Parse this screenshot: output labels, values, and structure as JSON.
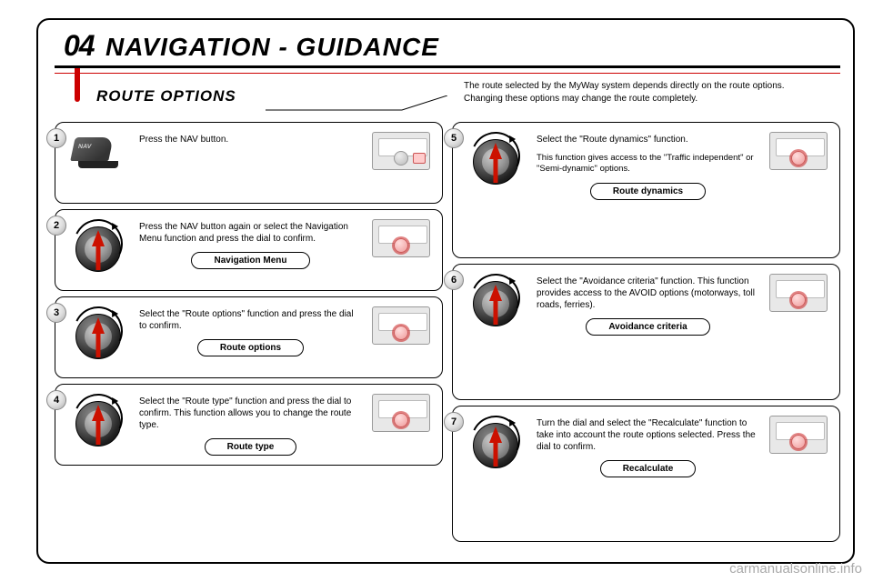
{
  "colors": {
    "accent": "#c00",
    "text": "#000",
    "bg": "#ffffff",
    "watermark": "#aaaaaa"
  },
  "header": {
    "number": "04",
    "title": "NAVIGATION - GUIDANCE"
  },
  "section_title": "ROUTE OPTIONS",
  "intro": {
    "line1": "The route selected by the MyWay system depends directly on the route options.",
    "line2": "Changing these options may change the route completely."
  },
  "steps": [
    {
      "n": "1",
      "text": "Press the NAV button.",
      "pill": null,
      "icon": "nav",
      "thumb": "btn",
      "sub": null,
      "tall": false
    },
    {
      "n": "2",
      "text": "Press the NAV button again or select the Navigation Menu function and press the dial to confirm.",
      "pill": "Navigation Menu",
      "icon": "dial",
      "thumb": "dial",
      "sub": null,
      "tall": false
    },
    {
      "n": "3",
      "text": "Select the \"Route options\" function and press the dial to confirm.",
      "pill": "Route options",
      "icon": "dial",
      "thumb": "dial",
      "sub": null,
      "tall": false
    },
    {
      "n": "4",
      "text": "Select the \"Route type\" function and press the dial to confirm. This function allows you to change the route type.",
      "pill": "Route type",
      "icon": "dial",
      "thumb": "dial",
      "sub": null,
      "tall": false
    },
    {
      "n": "5",
      "text": "Select the \"Route dynamics\" function.",
      "sub": "This function gives access to the \"Traffic independent\" or \"Semi-dynamic\" options.",
      "pill": "Route dynamics",
      "icon": "dial",
      "thumb": "dial",
      "tall": true
    },
    {
      "n": "6",
      "text": "Select the \"Avoidance criteria\" function. This function provides access to the AVOID options (motorways, toll roads, ferries).",
      "pill": "Avoidance criteria",
      "icon": "dial",
      "thumb": "dial",
      "sub": null,
      "tall": true
    },
    {
      "n": "7",
      "text": "Turn the dial and select the \"Recalculate\" function to take into account the route options selected. Press the dial to confirm.",
      "pill": "Recalculate",
      "icon": "dial",
      "thumb": "dial",
      "sub": null,
      "tall": true
    }
  ],
  "watermark": "carmanualsonline.info",
  "layout": {
    "left_steps": [
      0,
      1,
      2,
      3
    ],
    "right_steps": [
      4,
      5,
      6
    ]
  }
}
